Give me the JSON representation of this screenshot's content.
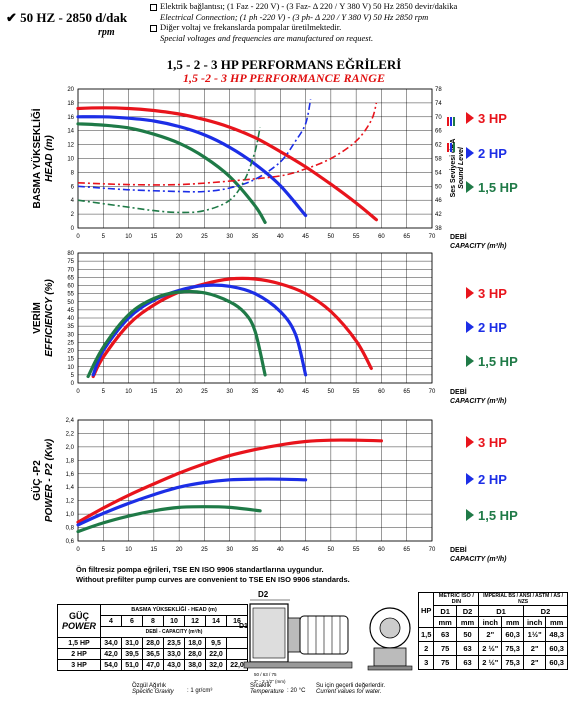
{
  "header": {
    "freq": "50 HZ - 2850 d/dak",
    "rpm": "rpm",
    "lines": [
      "Elektrik bağlantısı; (1 Faz - 220 V) - (3 Faz- Δ 220 / Y 380 V) 50 Hz 2850 devir/dakika",
      "Electrical Connection; (1 ph -220 V) - (3 ph- Δ 220 / Y 380 V) 50 Hz 2850 rpm",
      "Diğer voltaj ve frekanslarda pompalar üretilmektedir.",
      "Special voltages and frequencies are manufactured on request."
    ],
    "title_tr": "1,5 - 2 - 3 HP PERFORMANS EĞRİLERİ",
    "title_en": "1,5 -2 - 3 HP PERFORMANCE RANGE"
  },
  "colors": {
    "hp3": "#e8141c",
    "hp2": "#1c2ee6",
    "hp15": "#1f7a47"
  },
  "legend": [
    "3 HP",
    "2 HP",
    "1,5 HP"
  ],
  "x_axis": {
    "ticks": [
      0,
      5,
      10,
      15,
      20,
      25,
      30,
      35,
      40,
      45,
      50,
      55,
      60,
      65,
      70
    ],
    "label_tr": "DEBİ",
    "label_en": "CAPACITY (m³/h)"
  },
  "chart_data": [
    {
      "type": "line",
      "name_tr": "BASMA YÜKSEKLİĞİ",
      "name_en": "HEAD (m)",
      "xlim": [
        0,
        70
      ],
      "ylim": [
        0,
        20
      ],
      "y_ticks": [
        0,
        2,
        4,
        6,
        8,
        10,
        12,
        14,
        16,
        18,
        20
      ],
      "y2_ticks": [
        38,
        42,
        46,
        50,
        54,
        58,
        62,
        66,
        70,
        74,
        78
      ],
      "y2lim": [
        38,
        78
      ],
      "y2_label_tr": "Ses Seviyesi dBA",
      "y2_label_en": "Sound Level",
      "series": [
        {
          "name": "3 HP",
          "x": [
            0,
            5,
            10,
            15,
            20,
            25,
            30,
            35,
            40,
            45,
            50,
            55,
            59
          ],
          "y": [
            17.2,
            17.3,
            17.2,
            16.9,
            16.4,
            15.6,
            14.5,
            13.0,
            11.0,
            8.8,
            6.3,
            3.6,
            1.2
          ]
        },
        {
          "name": "2 HP",
          "x": [
            0,
            5,
            10,
            15,
            20,
            25,
            30,
            35,
            40,
            45
          ],
          "y": [
            16.0,
            16.0,
            15.8,
            15.4,
            14.6,
            13.4,
            11.6,
            9.2,
            6.1,
            1.8
          ]
        },
        {
          "name": "1,5 HP",
          "x": [
            0,
            5,
            10,
            15,
            20,
            25,
            30,
            35,
            37
          ],
          "y": [
            15.0,
            14.8,
            14.4,
            13.5,
            12.2,
            10.2,
            7.4,
            3.2,
            0.8
          ]
        }
      ],
      "sound_series": [
        {
          "name": "3 HP",
          "x": [
            0,
            10,
            20,
            30,
            40,
            45,
            50,
            55,
            58,
            59
          ],
          "y": [
            51,
            50.5,
            50.5,
            51.5,
            53,
            55,
            58,
            63,
            69,
            74
          ]
        },
        {
          "name": "2 HP",
          "x": [
            0,
            10,
            20,
            25,
            30,
            35,
            40,
            43,
            45,
            46
          ],
          "y": [
            50,
            49,
            48.5,
            48.5,
            49.5,
            52,
            57,
            63,
            68,
            75
          ]
        },
        {
          "name": "1,5 HP",
          "x": [
            0,
            10,
            15,
            20,
            25,
            30,
            33,
            35,
            36
          ],
          "y": [
            46,
            44,
            43,
            42.5,
            43,
            46,
            52,
            60,
            67
          ]
        }
      ]
    },
    {
      "type": "line",
      "name_tr": "VERİM",
      "name_en": "EFFICIENCY (%)",
      "xlim": [
        0,
        70
      ],
      "ylim": [
        0,
        80
      ],
      "y_ticks": [
        0,
        5,
        10,
        15,
        20,
        25,
        30,
        35,
        40,
        45,
        50,
        55,
        60,
        65,
        70,
        75,
        80
      ],
      "series": [
        {
          "name": "3 HP",
          "x": [
            3,
            5,
            10,
            15,
            20,
            25,
            30,
            35,
            40,
            45,
            50,
            55,
            58
          ],
          "y": [
            4,
            16,
            36,
            48,
            56,
            61,
            64,
            64,
            61,
            55,
            44,
            26,
            9
          ]
        },
        {
          "name": "2 HP",
          "x": [
            3,
            5,
            10,
            15,
            20,
            25,
            30,
            35,
            40,
            43,
            45
          ],
          "y": [
            5,
            20,
            40,
            51,
            57,
            60,
            59.5,
            55,
            44,
            30,
            5
          ]
        },
        {
          "name": "1,5 HP",
          "x": [
            2,
            5,
            10,
            15,
            20,
            25,
            30,
            33,
            35,
            37
          ],
          "y": [
            4,
            22,
            42,
            52,
            56,
            55.5,
            50,
            43,
            32,
            5
          ]
        }
      ]
    },
    {
      "type": "line",
      "name_tr": "GÜÇ -P2",
      "name_en": "POWER - P2 (Kw)",
      "xlim": [
        0,
        70
      ],
      "ylim": [
        0.6,
        2.4
      ],
      "y_ticks": [
        0.6,
        0.8,
        1.0,
        1.2,
        1.4,
        1.6,
        1.8,
        2.0,
        2.2,
        2.4
      ],
      "y_tick_labels": [
        "0,6",
        "0,8",
        "1,0",
        "1,2",
        "1,4",
        "1,6",
        "1,8",
        "2,0",
        "2,2",
        "2,4"
      ],
      "series": [
        {
          "name": "3 HP",
          "x": [
            0,
            5,
            10,
            15,
            20,
            25,
            30,
            35,
            40,
            45,
            50,
            55,
            60
          ],
          "y": [
            0.88,
            1.09,
            1.28,
            1.45,
            1.61,
            1.75,
            1.87,
            1.96,
            2.03,
            2.08,
            2.1,
            2.1,
            2.09
          ]
        },
        {
          "name": "2 HP",
          "x": [
            0,
            5,
            10,
            15,
            20,
            25,
            30,
            35,
            40,
            45
          ],
          "y": [
            0.84,
            1.01,
            1.16,
            1.29,
            1.4,
            1.47,
            1.51,
            1.52,
            1.52,
            1.51
          ]
        },
        {
          "name": "1,5 HP",
          "x": [
            0,
            5,
            10,
            15,
            20,
            25,
            30,
            36
          ],
          "y": [
            0.74,
            0.87,
            0.97,
            1.05,
            1.1,
            1.11,
            1.1,
            1.05
          ]
        }
      ]
    }
  ],
  "footnotes": [
    "Ön filtresiz pompa eğrileri, TSE EN ISO 9906 standartlarına uygundur.",
    "Without prefilter pump curves are convenient to TSE EN ISO 9906 standards."
  ],
  "table1": {
    "h1_tr": "GÜÇ",
    "h1_en": "POWER",
    "h2": "BASMA YÜKSEKLİĞİ - HEAD (m)",
    "cols": [
      "4",
      "6",
      "8",
      "10",
      "12",
      "14",
      "16"
    ],
    "cap_label": "DEBİ - CAPACITY (m³/h)",
    "rows": [
      {
        "hp": "1,5 HP",
        "v": [
          "34,0",
          "31,0",
          "28,0",
          "23,5",
          "18,0",
          "9,5",
          ""
        ]
      },
      {
        "hp": "2 HP",
        "v": [
          "42,0",
          "39,5",
          "36,5",
          "33,0",
          "28,0",
          "22,0",
          ""
        ]
      },
      {
        "hp": "3 HP",
        "v": [
          "54,0",
          "51,0",
          "47,0",
          "43,0",
          "38,0",
          "32,0",
          "22,0"
        ]
      }
    ]
  },
  "diagram_labels": {
    "d2": "D2",
    "d1": "D1",
    "dim1": "50 / 63 / 75",
    "dim2": "2\" - 2 1/2\" (mm)"
  },
  "table2": {
    "hp": "HP",
    "metric": "METRIC ISO / DIN",
    "imperial": "IMPERIAL BS / ANSI / ASTM / AS / NZS",
    "d1": "D1",
    "d2": "D2",
    "units": [
      "mm",
      "mm",
      "inch",
      "mm",
      "inch",
      "mm"
    ],
    "rows": [
      [
        "1,5",
        "63",
        "50",
        "2\"",
        "60,3",
        "1½\"",
        "48,3"
      ],
      [
        "2",
        "75",
        "63",
        "2 ½\"",
        "75,3",
        "2\"",
        "60,3"
      ],
      [
        "3",
        "75",
        "63",
        "2 ½\"",
        "75,3",
        "2\"",
        "60,3"
      ]
    ]
  },
  "bottom": {
    "gravity_tr": "Özgül Ağırlık",
    "gravity_en": "Specific Gravity",
    "gravity_val": ": 1 gr/cm³",
    "temp_tr": "Sıcaklık",
    "temp_en": "Temperature",
    "temp_val": ": 20 °C",
    "water_tr": "Su için geçerli değerlerdir.",
    "water_en": "Current values for water."
  }
}
